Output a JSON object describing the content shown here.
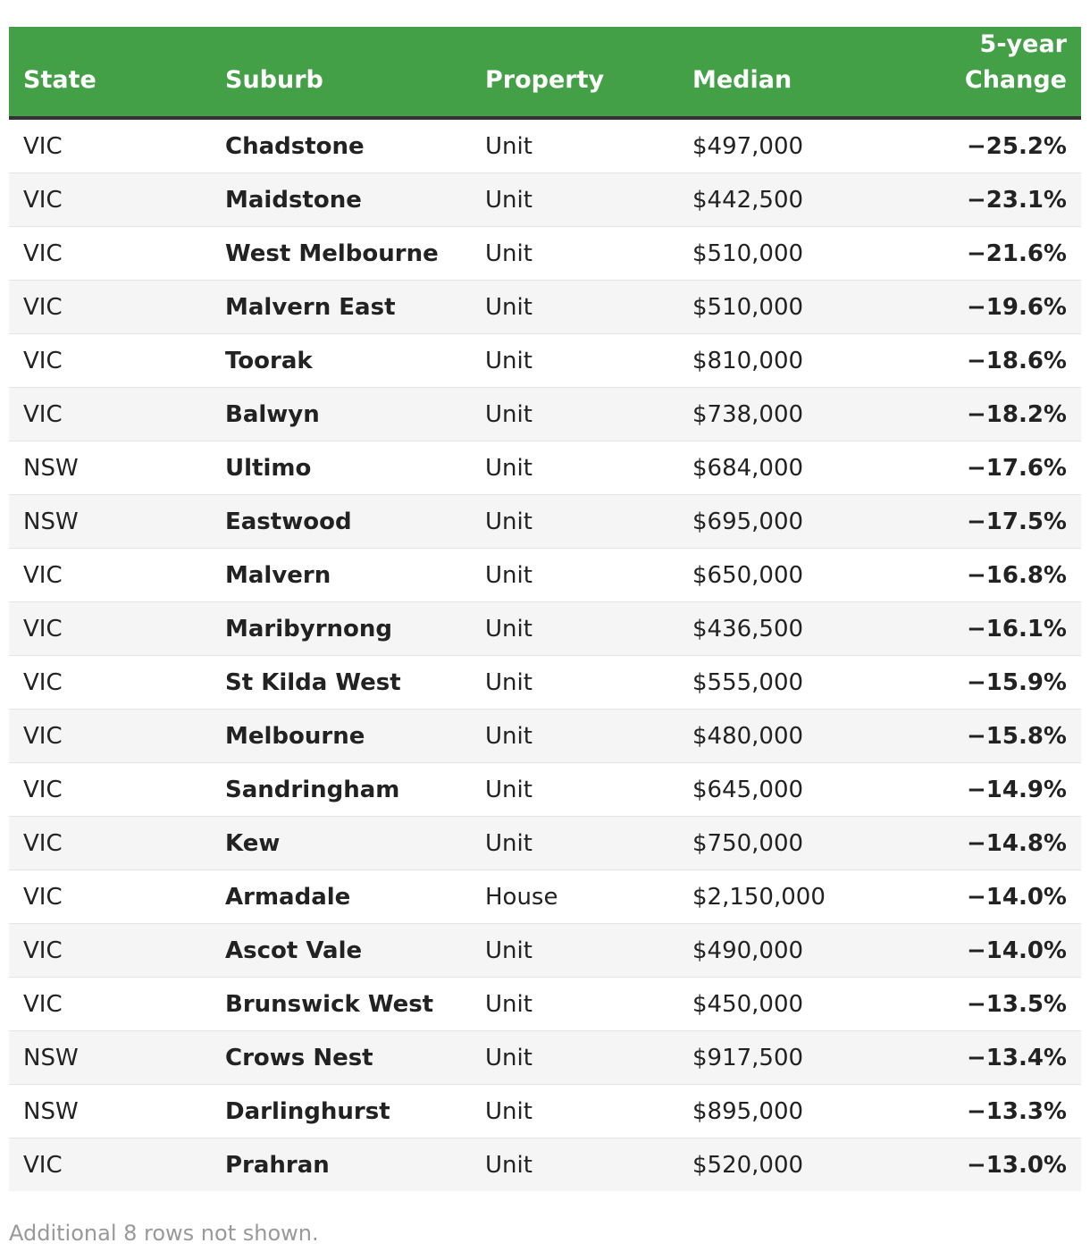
{
  "chart_data": {
    "type": "table",
    "columns": [
      "State",
      "Suburb",
      "Property",
      "Median",
      "5-year Change"
    ],
    "header_change_line1": "5-year",
    "header_change_line2": "Change",
    "rows": [
      [
        "VIC",
        "Chadstone",
        "Unit",
        "$497,000",
        "−25.2%"
      ],
      [
        "VIC",
        "Maidstone",
        "Unit",
        "$442,500",
        "−23.1%"
      ],
      [
        "VIC",
        "West Melbourne",
        "Unit",
        "$510,000",
        "−21.6%"
      ],
      [
        "VIC",
        "Malvern East",
        "Unit",
        "$510,000",
        "−19.6%"
      ],
      [
        "VIC",
        "Toorak",
        "Unit",
        "$810,000",
        "−18.6%"
      ],
      [
        "VIC",
        "Balwyn",
        "Unit",
        "$738,000",
        "−18.2%"
      ],
      [
        "NSW",
        "Ultimo",
        "Unit",
        "$684,000",
        "−17.6%"
      ],
      [
        "NSW",
        "Eastwood",
        "Unit",
        "$695,000",
        "−17.5%"
      ],
      [
        "VIC",
        "Malvern",
        "Unit",
        "$650,000",
        "−16.8%"
      ],
      [
        "VIC",
        "Maribyrnong",
        "Unit",
        "$436,500",
        "−16.1%"
      ],
      [
        "VIC",
        "St Kilda West",
        "Unit",
        "$555,000",
        "−15.9%"
      ],
      [
        "VIC",
        "Melbourne",
        "Unit",
        "$480,000",
        "−15.8%"
      ],
      [
        "VIC",
        "Sandringham",
        "Unit",
        "$645,000",
        "−14.9%"
      ],
      [
        "VIC",
        "Kew",
        "Unit",
        "$750,000",
        "−14.8%"
      ],
      [
        "VIC",
        "Armadale",
        "House",
        "$2,150,000",
        "−14.0%"
      ],
      [
        "VIC",
        "Ascot Vale",
        "Unit",
        "$490,000",
        "−14.0%"
      ],
      [
        "VIC",
        "Brunswick West",
        "Unit",
        "$450,000",
        "−13.5%"
      ],
      [
        "NSW",
        "Crows Nest",
        "Unit",
        "$917,500",
        "−13.4%"
      ],
      [
        "NSW",
        "Darlinghurst",
        "Unit",
        "$895,000",
        "−13.3%"
      ],
      [
        "VIC",
        "Prahran",
        "Unit",
        "$520,000",
        "−13.0%"
      ]
    ],
    "footnote": "Additional 8 rows not shown."
  },
  "colors": {
    "header_bg": "#43a047",
    "header_text": "#ffffff",
    "stripe": "#f5f5f5",
    "footnote": "#999999"
  }
}
